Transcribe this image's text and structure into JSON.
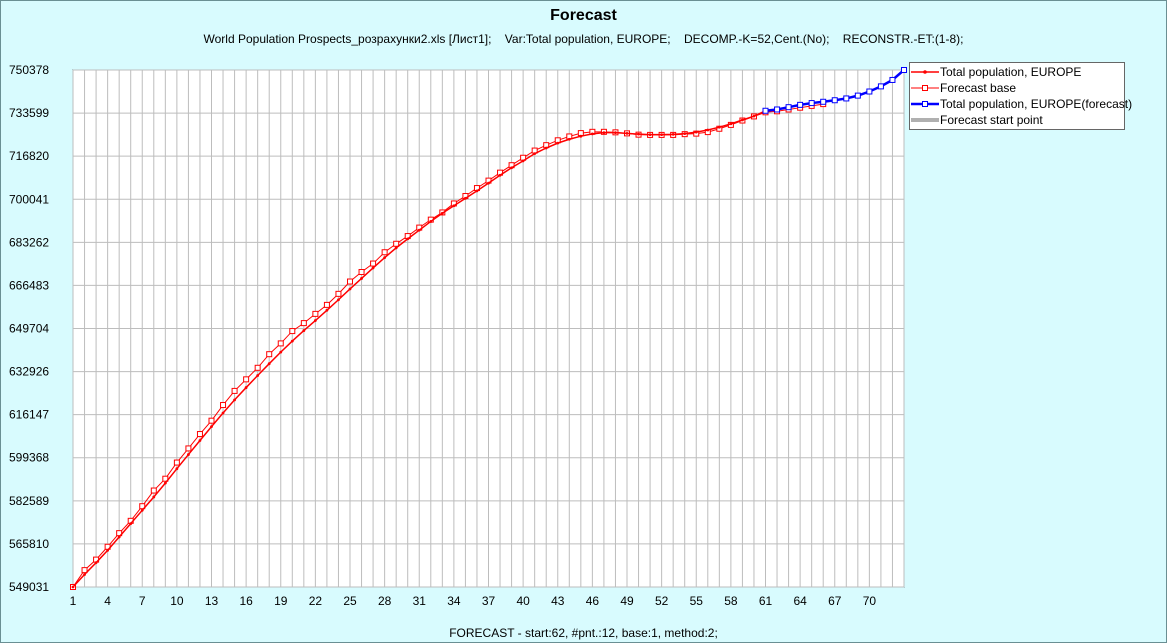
{
  "chart_data": {
    "type": "line",
    "title": "Forecast",
    "subtitle": "World Population Prospects_розрахунки2.xls [Лист1];    Var:Total population, EUROPE;    DECOMP.-K=52,Cent.(No);    RECONSTR.-ET:(1-8);",
    "xlabel": "FORECAST - start:62, #pnt.:12, base:1, method:2;",
    "ylabel": "",
    "xlim": [
      1,
      73
    ],
    "ylim": [
      549031,
      750378
    ],
    "x_ticks": [
      1,
      4,
      7,
      10,
      13,
      16,
      19,
      22,
      25,
      28,
      31,
      34,
      37,
      40,
      43,
      46,
      49,
      52,
      55,
      58,
      61,
      64,
      67,
      70
    ],
    "y_ticks": [
      549031,
      565810,
      582589,
      599368,
      616147,
      632926,
      649704,
      666483,
      683262,
      700041,
      716820,
      733599,
      750378
    ],
    "grid": true,
    "legend_position": "right",
    "series": [
      {
        "name": "Total population, EUROPE",
        "color": "#ff0000",
        "marker": "dot",
        "x": [
          1,
          2,
          3,
          4,
          5,
          6,
          7,
          8,
          9,
          10,
          11,
          12,
          13,
          14,
          15,
          16,
          17,
          18,
          19,
          20,
          21,
          22,
          23,
          24,
          25,
          26,
          27,
          28,
          29,
          30,
          31,
          32,
          33,
          34,
          35,
          36,
          37,
          38,
          39,
          40,
          41,
          42,
          43,
          44,
          45,
          46,
          47,
          48,
          49,
          50,
          51,
          52,
          53,
          54,
          55,
          56,
          57,
          58,
          59,
          60,
          61
        ],
        "values": [
          549031,
          553900,
          558500,
          563300,
          568500,
          573700,
          578900,
          584100,
          589500,
          595100,
          600600,
          606100,
          611500,
          616800,
          621900,
          626700,
          631400,
          636000,
          640500,
          644800,
          648900,
          652800,
          656800,
          660900,
          665100,
          669200,
          673300,
          677300,
          681100,
          684600,
          688000,
          691400,
          694600,
          697500,
          700400,
          703300,
          706300,
          709400,
          712300,
          715000,
          717800,
          720000,
          721900,
          723400,
          724600,
          725500,
          726000,
          726000,
          725700,
          725400,
          725200,
          725200,
          725300,
          725600,
          726200,
          727000,
          728100,
          729400,
          730900,
          732400,
          734500
        ]
      },
      {
        "name": "Forecast base",
        "color": "#ff0000",
        "marker": "square",
        "x": [
          1,
          2,
          3,
          4,
          5,
          6,
          7,
          8,
          9,
          10,
          11,
          12,
          13,
          14,
          15,
          16,
          17,
          18,
          19,
          20,
          21,
          22,
          23,
          24,
          25,
          26,
          27,
          28,
          29,
          30,
          31,
          32,
          33,
          34,
          35,
          36,
          37,
          38,
          39,
          40,
          41,
          42,
          43,
          44,
          45,
          46,
          47,
          48,
          49,
          50,
          51,
          52,
          53,
          54,
          55,
          56,
          57,
          58,
          59,
          60,
          61,
          62,
          63,
          64,
          65,
          66
        ],
        "values": [
          549031,
          555600,
          559700,
          564700,
          570000,
          574800,
          580500,
          586600,
          591200,
          597500,
          603000,
          608600,
          613800,
          619900,
          625400,
          629900,
          634400,
          639700,
          643900,
          648700,
          651800,
          655400,
          658900,
          663200,
          668000,
          671700,
          675000,
          679400,
          682700,
          685700,
          689000,
          692100,
          694900,
          698400,
          701300,
          704400,
          707300,
          710400,
          713300,
          716200,
          719000,
          721100,
          723000,
          724500,
          725800,
          726300,
          726300,
          726100,
          725700,
          725200,
          725100,
          725100,
          725100,
          725400,
          725600,
          726200,
          727500,
          729000,
          730700,
          732300,
          733900,
          734300,
          735000,
          735700,
          736400,
          737100
        ]
      },
      {
        "name": "Total population, EUROPE(forecast)",
        "color": "#0000ff",
        "marker": "square",
        "x": [
          61,
          62,
          63,
          64,
          65,
          66,
          67,
          68,
          69,
          70,
          71,
          72,
          73
        ],
        "values": [
          734500,
          735000,
          735900,
          736800,
          737500,
          738000,
          738600,
          739300,
          740400,
          742000,
          744000,
          746500,
          750378
        ]
      },
      {
        "name": "Forecast start point",
        "color": "#b0b0b0",
        "marker": "none",
        "x": [],
        "values": []
      }
    ]
  }
}
